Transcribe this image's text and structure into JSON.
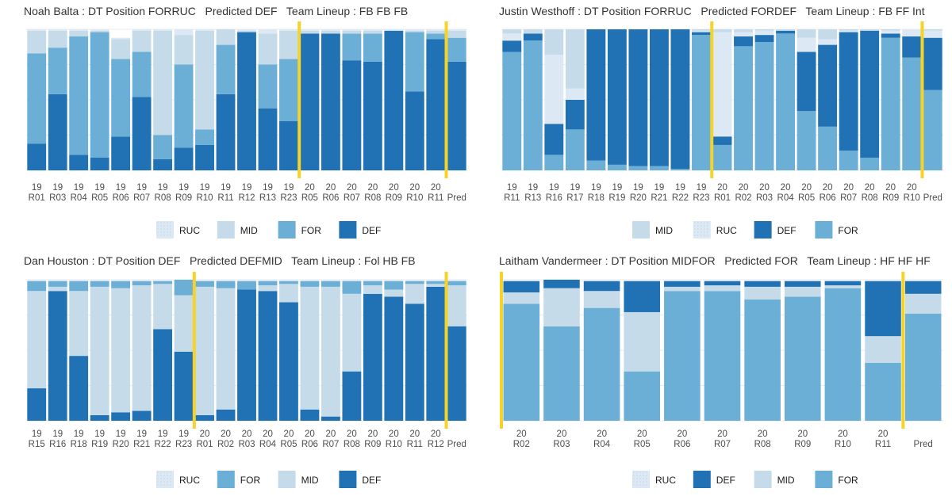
{
  "palette": {
    "RUC": "#dce9f4",
    "MID": "#c6dbe9",
    "FOR": "#6baed6",
    "DEF": "#2171b5",
    "divider": "#f5d327",
    "grid": "#ebebeb"
  },
  "chart_data": [
    {
      "type": "stacked-bar",
      "title": "Noah Balta : DT Position FORRUC   Predicted DEF   Team Lineup : FB FB FB",
      "stack_order": [
        "DEF",
        "FOR",
        "MID",
        "RUC"
      ],
      "legend": [
        "RUC",
        "MID",
        "FOR",
        "DEF"
      ],
      "legend_position": "bottom",
      "ylim": [
        0,
        1
      ],
      "grid": true,
      "dividers_after": [
        13,
        20
      ],
      "categories": [
        [
          "19",
          "R01"
        ],
        [
          "19",
          "R03"
        ],
        [
          "19",
          "R04"
        ],
        [
          "19",
          "R05"
        ],
        [
          "19",
          "R06"
        ],
        [
          "19",
          "R07"
        ],
        [
          "19",
          "R08"
        ],
        [
          "19",
          "R09"
        ],
        [
          "19",
          "R10"
        ],
        [
          "19",
          "R11"
        ],
        [
          "19",
          "R12"
        ],
        [
          "19",
          "R13"
        ],
        [
          "19",
          "R23"
        ],
        [
          "20",
          "R05"
        ],
        [
          "20",
          "R06"
        ],
        [
          "20",
          "R07"
        ],
        [
          "20",
          "R08"
        ],
        [
          "20",
          "R09"
        ],
        [
          "20",
          "R10"
        ],
        [
          "20",
          "R11"
        ],
        [
          "",
          "Pred"
        ]
      ],
      "series": [
        {
          "name": "DEF",
          "values": [
            0.19,
            0.54,
            0.11,
            0.09,
            0.24,
            0.52,
            0.08,
            0.16,
            0.18,
            0.54,
            0.98,
            0.44,
            0.35,
            0.97,
            0.97,
            0.78,
            0.77,
            0.99,
            0.56,
            0.93,
            0.77
          ]
        },
        {
          "name": "FOR",
          "values": [
            0.64,
            0.33,
            0.84,
            0.89,
            0.55,
            0.32,
            0.17,
            0.59,
            0.11,
            0.35,
            0.0,
            0.31,
            0.44,
            0.0,
            0.0,
            0.19,
            0.2,
            0.0,
            0.42,
            0.04,
            0.17
          ]
        },
        {
          "name": "MID",
          "values": [
            0.16,
            0.12,
            0.04,
            0.01,
            0.14,
            0.15,
            0.74,
            0.21,
            0.7,
            0.11,
            0.01,
            0.22,
            0.2,
            0.02,
            0.02,
            0.02,
            0.02,
            0.0,
            0.01,
            0.02,
            0.05
          ]
        },
        {
          "name": "RUC",
          "values": [
            0.01,
            0.01,
            0.01,
            0.01,
            0.01,
            0.01,
            0.01,
            0.04,
            0.01,
            0.0,
            0.01,
            0.03,
            0.01,
            0.01,
            0.01,
            0.01,
            0.01,
            0.01,
            0.01,
            0.01,
            0.01
          ]
        }
      ]
    },
    {
      "type": "stacked-bar",
      "title": "Justin Westhoff : DT Position FORRUC   Predicted FORDEF   Team Lineup : FB FF Int",
      "stack_order": [
        "FOR",
        "DEF",
        "RUC",
        "MID"
      ],
      "legend": [
        "MID",
        "RUC",
        "DEF",
        "FOR"
      ],
      "legend_position": "bottom",
      "ylim": [
        0,
        1
      ],
      "grid": true,
      "dividers_after": [
        10,
        20
      ],
      "categories": [
        [
          "19",
          "R11"
        ],
        [
          "19",
          "R13"
        ],
        [
          "19",
          "R16"
        ],
        [
          "19",
          "R17"
        ],
        [
          "19",
          "R18"
        ],
        [
          "19",
          "R19"
        ],
        [
          "19",
          "R20"
        ],
        [
          "19",
          "R21"
        ],
        [
          "19",
          "R22"
        ],
        [
          "19",
          "R23"
        ],
        [
          "20",
          "R01"
        ],
        [
          "20",
          "R02"
        ],
        [
          "20",
          "R03"
        ],
        [
          "20",
          "R04"
        ],
        [
          "20",
          "R05"
        ],
        [
          "20",
          "R06"
        ],
        [
          "20",
          "R07"
        ],
        [
          "20",
          "R08"
        ],
        [
          "20",
          "R09"
        ],
        [
          "20",
          "R10"
        ],
        [
          "",
          "Pred"
        ]
      ],
      "series": [
        {
          "name": "FOR",
          "values": [
            0.84,
            0.92,
            0.11,
            0.29,
            0.07,
            0.04,
            0.03,
            0.03,
            0.01,
            0.96,
            0.18,
            0.88,
            0.91,
            0.97,
            0.42,
            0.31,
            0.14,
            0.09,
            0.94,
            0.8,
            0.57
          ]
        },
        {
          "name": "DEF",
          "values": [
            0.08,
            0.05,
            0.22,
            0.21,
            0.93,
            0.96,
            0.97,
            0.97,
            0.99,
            0.02,
            0.06,
            0.07,
            0.05,
            0.02,
            0.42,
            0.58,
            0.84,
            0.9,
            0.03,
            0.15,
            0.37
          ]
        },
        {
          "name": "RUC",
          "values": [
            0.05,
            0.0,
            0.49,
            0.08,
            0.0,
            0.0,
            0.0,
            0.0,
            0.0,
            0.01,
            0.74,
            0.03,
            0.03,
            0.0,
            0.1,
            0.04,
            0.01,
            0.0,
            0.02,
            0.05,
            0.05
          ]
        },
        {
          "name": "MID",
          "values": [
            0.03,
            0.03,
            0.18,
            0.42,
            0.0,
            0.0,
            0.0,
            0.0,
            0.0,
            0.01,
            0.02,
            0.02,
            0.01,
            0.01,
            0.06,
            0.07,
            0.01,
            0.01,
            0.01,
            0.0,
            0.01
          ]
        }
      ]
    },
    {
      "type": "stacked-bar",
      "title": "Dan Houston : DT Position DEF   Predicted DEFMID   Team Lineup : Fol HB FB",
      "stack_order": [
        "DEF",
        "MID",
        "FOR",
        "RUC"
      ],
      "legend": [
        "RUC",
        "FOR",
        "MID",
        "DEF"
      ],
      "legend_position": "bottom",
      "ylim": [
        0,
        1
      ],
      "grid": true,
      "dividers_after": [
        8,
        20
      ],
      "categories": [
        [
          "19",
          "R15"
        ],
        [
          "19",
          "R16"
        ],
        [
          "19",
          "R18"
        ],
        [
          "19",
          "R19"
        ],
        [
          "19",
          "R20"
        ],
        [
          "19",
          "R21"
        ],
        [
          "19",
          "R22"
        ],
        [
          "19",
          "R23"
        ],
        [
          "20",
          "R01"
        ],
        [
          "20",
          "R02"
        ],
        [
          "20",
          "R03"
        ],
        [
          "20",
          "R04"
        ],
        [
          "20",
          "R05"
        ],
        [
          "20",
          "R06"
        ],
        [
          "20",
          "R07"
        ],
        [
          "20",
          "R08"
        ],
        [
          "20",
          "R09"
        ],
        [
          "20",
          "R10"
        ],
        [
          "20",
          "R11"
        ],
        [
          "20",
          "R12"
        ],
        [
          "",
          "Pred"
        ]
      ],
      "series": [
        {
          "name": "DEF",
          "values": [
            0.23,
            0.92,
            0.46,
            0.04,
            0.06,
            0.07,
            0.65,
            0.49,
            0.04,
            0.08,
            0.93,
            0.92,
            0.84,
            0.08,
            0.03,
            0.35,
            0.9,
            0.88,
            0.83,
            0.95,
            0.67
          ]
        },
        {
          "name": "MID",
          "values": [
            0.69,
            0.03,
            0.46,
            0.91,
            0.88,
            0.89,
            0.32,
            0.4,
            0.91,
            0.86,
            0.0,
            0.04,
            0.13,
            0.87,
            0.92,
            0.55,
            0.06,
            0.05,
            0.14,
            0.02,
            0.29
          ]
        },
        {
          "name": "FOR",
          "values": [
            0.07,
            0.04,
            0.07,
            0.04,
            0.05,
            0.03,
            0.02,
            0.11,
            0.04,
            0.05,
            0.06,
            0.03,
            0.02,
            0.04,
            0.04,
            0.09,
            0.03,
            0.06,
            0.02,
            0.02,
            0.03
          ]
        },
        {
          "name": "RUC",
          "values": [
            0.01,
            0.01,
            0.01,
            0.01,
            0.01,
            0.01,
            0.01,
            0.0,
            0.01,
            0.01,
            0.01,
            0.01,
            0.01,
            0.01,
            0.01,
            0.01,
            0.01,
            0.01,
            0.01,
            0.01,
            0.01
          ]
        }
      ]
    },
    {
      "type": "stacked-bar",
      "title": "Laitham Vandermeer : DT Position MIDFOR   Predicted FOR   Team Lineup : HF HF HF",
      "stack_order": [
        "FOR",
        "MID",
        "DEF",
        "RUC"
      ],
      "legend": [
        "RUC",
        "DEF",
        "MID",
        "FOR"
      ],
      "legend_position": "bottom",
      "ylim": [
        0,
        1
      ],
      "grid": true,
      "dividers_after": [
        0,
        10
      ],
      "categories": [
        [
          "20",
          "R02"
        ],
        [
          "20",
          "R03"
        ],
        [
          "20",
          "R04"
        ],
        [
          "20",
          "R05"
        ],
        [
          "20",
          "R06"
        ],
        [
          "20",
          "R07"
        ],
        [
          "20",
          "R08"
        ],
        [
          "20",
          "R09"
        ],
        [
          "20",
          "R10"
        ],
        [
          "20",
          "R11"
        ],
        [
          "",
          "Pred"
        ]
      ],
      "series": [
        {
          "name": "FOR",
          "values": [
            0.83,
            0.67,
            0.8,
            0.35,
            0.92,
            0.92,
            0.86,
            0.88,
            0.94,
            0.41,
            0.76
          ]
        },
        {
          "name": "MID",
          "values": [
            0.08,
            0.27,
            0.12,
            0.42,
            0.03,
            0.04,
            0.09,
            0.07,
            0.02,
            0.19,
            0.14
          ]
        },
        {
          "name": "DEF",
          "values": [
            0.08,
            0.06,
            0.07,
            0.22,
            0.04,
            0.03,
            0.04,
            0.04,
            0.03,
            0.39,
            0.09
          ]
        },
        {
          "name": "RUC",
          "values": [
            0.01,
            0.0,
            0.01,
            0.01,
            0.01,
            0.01,
            0.01,
            0.01,
            0.01,
            0.01,
            0.01
          ]
        }
      ]
    }
  ]
}
